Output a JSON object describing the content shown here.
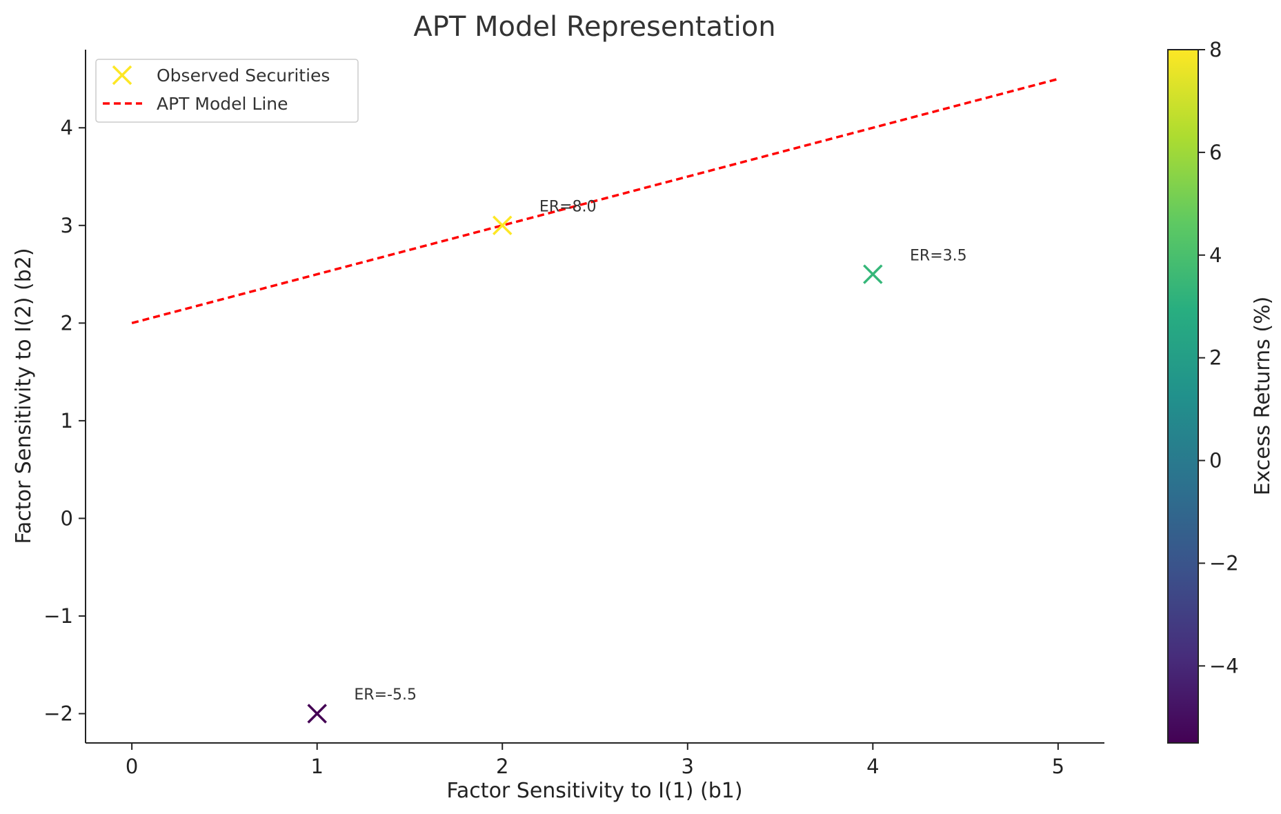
{
  "chart_data": [
    {
      "type": "scatter",
      "title": "APT Model Representation",
      "xlabel": "Factor Sensitivity to I(1) (b1)",
      "ylabel": "Factor Sensitivity to I(2) (b2)",
      "xlim": [
        -0.25,
        5.25
      ],
      "ylim": [
        -2.3,
        4.8
      ],
      "xticks": [
        0,
        1,
        2,
        3,
        4,
        5
      ],
      "yticks": [
        -2,
        -1,
        0,
        1,
        2,
        3,
        4
      ],
      "xtick_labels": [
        "0",
        "1",
        "2",
        "3",
        "4",
        "5"
      ],
      "ytick_labels": [
        "−2",
        "−1",
        "0",
        "1",
        "2",
        "3",
        "4"
      ],
      "grid": false,
      "series": [
        {
          "name": "Observed Securities",
          "marker": "x",
          "points": [
            {
              "x": 1,
              "y": -2,
              "er": -5.5,
              "label": "ER=-5.5",
              "color": "#440154"
            },
            {
              "x": 2,
              "y": 3,
              "er": 8.0,
              "label": "ER=8.0",
              "color": "#fde725"
            },
            {
              "x": 4,
              "y": 2.5,
              "er": 3.5,
              "label": "ER=3.5",
              "color": "#35b779"
            }
          ]
        },
        {
          "name": "APT Model Line",
          "style": "dashed",
          "color": "#ff0000",
          "x": [
            0,
            5
          ],
          "y": [
            2,
            4.5
          ]
        }
      ],
      "legend": {
        "position": "top-left",
        "entries": [
          "Observed Securities",
          "APT Model Line"
        ],
        "marker_color": "#fde725"
      },
      "colorbar": {
        "label": "Excess Returns (%)",
        "colormap": "viridis",
        "range": [
          -5.5,
          8
        ],
        "ticks": [
          -4,
          -2,
          0,
          2,
          4,
          6,
          8
        ],
        "tick_labels": [
          "−4",
          "−2",
          "0",
          "2",
          "4",
          "6",
          "8"
        ]
      }
    }
  ]
}
